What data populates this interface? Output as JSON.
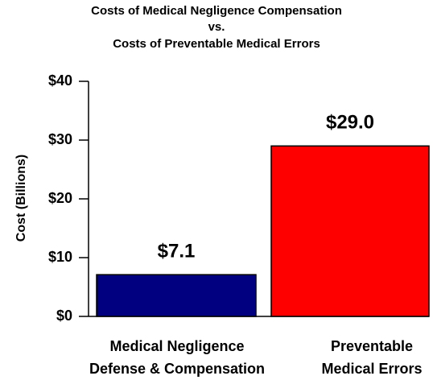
{
  "chart_data": {
    "type": "bar",
    "title": "Costs of Medical Negligence Compensation\nvs.\nCosts of Preventable Medical Errors",
    "y_label": "Cost (Billions)",
    "categories": [
      "Medical Negligence\nDefense & Compensation",
      "Preventable\nMedical Errors"
    ],
    "values": [
      7.1,
      29.0
    ],
    "value_labels": [
      "$7.1",
      "$29.0"
    ],
    "colors": [
      "#000080",
      "#ff0000"
    ],
    "ylim": [
      0,
      40
    ],
    "yticks": [
      {
        "value": 0,
        "label": "$0"
      },
      {
        "value": 10,
        "label": "$10"
      },
      {
        "value": 20,
        "label": "$20"
      },
      {
        "value": 30,
        "label": "$30"
      },
      {
        "value": 40,
        "label": "$40"
      }
    ],
    "grid": false
  }
}
